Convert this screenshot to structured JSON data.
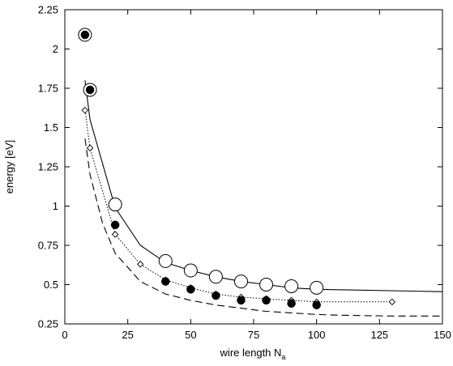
{
  "chart_data": {
    "type": "scatter",
    "xlabel": "wire length N",
    "xlabel_subscript": "a",
    "ylabel": "energy [eV]",
    "xlim": [
      0,
      150
    ],
    "ylim": [
      0.25,
      2.25
    ],
    "xticks": [
      0,
      25,
      50,
      75,
      100,
      125,
      150
    ],
    "yticks": [
      0.25,
      0.5,
      0.75,
      1,
      1.25,
      1.5,
      1.75,
      2,
      2.25
    ],
    "xtick_labels": [
      "0",
      "25",
      "50",
      "75",
      "100",
      "125",
      "150"
    ],
    "ytick_labels": [
      "0.25",
      "0.5",
      "0.75",
      "1",
      "1.25",
      "1.5",
      "1.75",
      "2",
      "2.25"
    ],
    "grid": false,
    "series": [
      {
        "style": "solid-line",
        "x": [
          8,
          10,
          20,
          30,
          40,
          50,
          60,
          70,
          80,
          90,
          100,
          150
        ],
        "y": [
          1.8,
          1.55,
          0.99,
          0.75,
          0.64,
          0.59,
          0.55,
          0.52,
          0.5,
          0.48,
          0.47,
          0.455
        ]
      },
      {
        "style": "dashed-line",
        "x": [
          8,
          10,
          15,
          20,
          30,
          40,
          50,
          60,
          70,
          80,
          90,
          100,
          110,
          130,
          150
        ],
        "y": [
          1.43,
          1.2,
          0.89,
          0.7,
          0.52,
          0.44,
          0.4,
          0.37,
          0.35,
          0.33,
          0.32,
          0.31,
          0.305,
          0.3,
          0.3
        ]
      },
      {
        "style": "dotted-line-diamond",
        "x": [
          8,
          10,
          20,
          30,
          40,
          50,
          60,
          70,
          80,
          90,
          100,
          130
        ],
        "y": [
          1.61,
          1.37,
          0.82,
          0.63,
          0.53,
          0.48,
          0.44,
          0.42,
          0.41,
          0.4,
          0.39,
          0.39
        ]
      },
      {
        "style": "open-circle",
        "x": [
          8,
          10,
          20,
          40,
          50,
          60,
          70,
          80,
          90,
          100
        ],
        "y": [
          2.09,
          1.74,
          1.01,
          0.65,
          0.59,
          0.55,
          0.52,
          0.5,
          0.49,
          0.48
        ]
      },
      {
        "style": "filled-circle",
        "x": [
          8,
          10,
          20,
          40,
          50,
          60,
          70,
          80,
          90,
          100
        ],
        "y": [
          2.09,
          1.74,
          0.88,
          0.52,
          0.47,
          0.43,
          0.4,
          0.4,
          0.38,
          0.37
        ]
      }
    ]
  }
}
